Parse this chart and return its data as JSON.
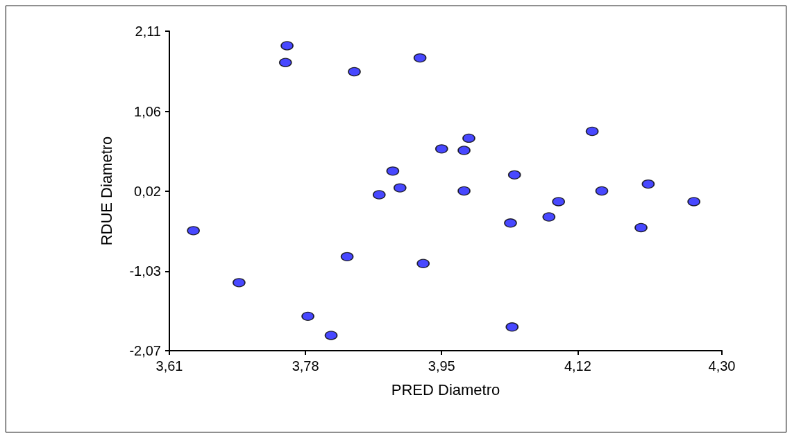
{
  "chart_data": {
    "type": "scatter",
    "xlabel": "PRED Diametro",
    "ylabel": "RDUE Diametro",
    "xlim": [
      3.61,
      4.3
    ],
    "xticks": [
      {
        "value": 3.61,
        "label": "3,61"
      },
      {
        "value": 3.78,
        "label": "3,78"
      },
      {
        "value": 3.95,
        "label": "3,95"
      },
      {
        "value": 4.12,
        "label": "4,12"
      },
      {
        "value": 4.3,
        "label": "4,30"
      }
    ],
    "ylim": [
      -2.07,
      2.11
    ],
    "yticks": [
      {
        "value": -2.07,
        "label": "-2,07"
      },
      {
        "value": -1.03,
        "label": "-1,03"
      },
      {
        "value": 0.02,
        "label": "0,02"
      },
      {
        "value": 1.06,
        "label": "1,06"
      },
      {
        "value": 2.11,
        "label": "2,11"
      }
    ],
    "grid": false,
    "marker": "circle",
    "series": [
      {
        "color": "#1a1aff",
        "x": [
          3.64,
          3.697,
          3.755,
          3.757,
          3.783,
          3.812,
          3.832,
          3.841,
          3.872,
          3.889,
          3.898,
          3.923,
          3.927,
          3.95,
          3.978,
          3.978,
          3.984,
          4.036,
          4.038,
          4.041,
          4.084,
          4.096,
          4.138,
          4.15,
          4.199,
          4.208,
          4.265
        ],
        "values": [
          -0.5,
          -1.18,
          1.7,
          1.92,
          -1.62,
          -1.87,
          -0.84,
          1.58,
          -0.03,
          0.28,
          0.06,
          1.76,
          -0.93,
          0.57,
          0.55,
          0.02,
          0.71,
          -0.4,
          -1.76,
          0.23,
          -0.32,
          -0.12,
          0.8,
          0.02,
          -0.46,
          0.11,
          -0.12
        ]
      }
    ]
  }
}
